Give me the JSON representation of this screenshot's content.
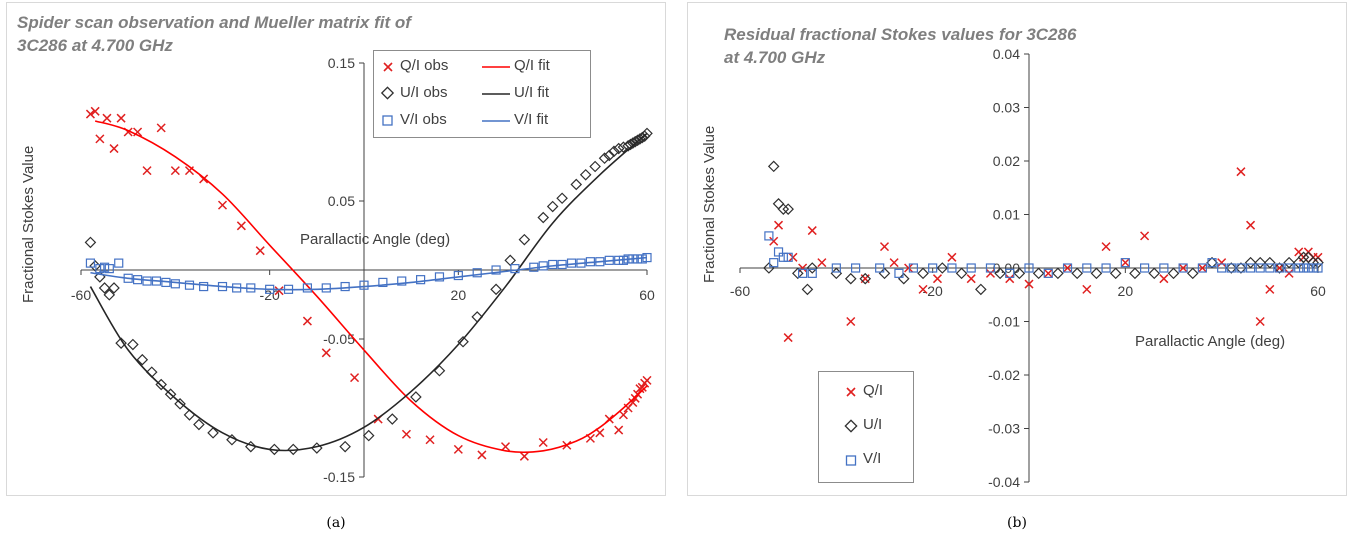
{
  "captions": [
    "(a)",
    "(b)"
  ],
  "colors": {
    "Q": "#e02020",
    "U": "#303030",
    "V": "#4472c4",
    "fitQ": "#ff0000",
    "fitU": "#262626",
    "fitV": "#4472c4"
  },
  "chart_data": [
    {
      "type": "scatter",
      "title_lines": [
        "Spider scan observation and Mueller matrix fit of",
        "3C286 at 4.700 GHz"
      ],
      "xlabel": "Parallactic Angle (deg)",
      "ylabel": "Fractional Stokes Value",
      "xlim": [
        -60,
        60
      ],
      "ylim": [
        -0.15,
        0.15
      ],
      "xticks": [
        "-60",
        "-20",
        "20",
        "60"
      ],
      "yticks": [
        "0.15",
        "0.05",
        "-0.05",
        "-0.15"
      ],
      "legend_labels": [
        "Q/I obs",
        "Q/I fit",
        "U/I obs",
        "U/I fit",
        "V/I obs",
        "V/I fit"
      ],
      "series": [
        {
          "name": "Q/I obs",
          "marker": "x",
          "x": [
            -58,
            -57,
            -56,
            -54.5,
            -53,
            -51.5,
            -50,
            -48,
            -46,
            -43,
            -40,
            -37,
            -34,
            -30,
            -26,
            -22,
            -18,
            -12,
            -8,
            -2,
            3,
            9,
            14,
            20,
            25,
            30,
            34,
            38,
            43,
            48,
            50,
            52,
            54,
            55,
            56,
            57,
            57.5,
            58,
            58.5,
            59,
            59.5,
            60
          ],
          "y": [
            0.113,
            0.115,
            0.095,
            0.11,
            0.088,
            0.11,
            0.1,
            0.1,
            0.072,
            0.103,
            0.072,
            0.072,
            0.066,
            0.047,
            0.032,
            0.014,
            -0.015,
            -0.037,
            -0.06,
            -0.078,
            -0.108,
            -0.119,
            -0.123,
            -0.13,
            -0.134,
            -0.128,
            -0.135,
            -0.125,
            -0.127,
            -0.122,
            -0.118,
            -0.108,
            -0.116,
            -0.105,
            -0.1,
            -0.096,
            -0.093,
            -0.09,
            -0.086,
            -0.085,
            -0.082,
            -0.08
          ]
        },
        {
          "name": "Q/I fit",
          "type": "line",
          "x": [
            -57,
            -50,
            -40,
            -30,
            -20,
            -10,
            0,
            10,
            20,
            30,
            38,
            45,
            50,
            55,
            60
          ],
          "y": [
            0.108,
            0.101,
            0.082,
            0.055,
            0.018,
            -0.019,
            -0.058,
            -0.095,
            -0.12,
            -0.131,
            -0.131,
            -0.124,
            -0.114,
            -0.1,
            -0.084
          ]
        },
        {
          "name": "U/I obs",
          "marker": "diamond",
          "x": [
            -58,
            -57,
            -56,
            -55,
            -54,
            -53,
            -51.5,
            -49,
            -47,
            -45,
            -43,
            -41,
            -39,
            -37,
            -35,
            -32,
            -28,
            -24,
            -19,
            -15,
            -10,
            -4,
            1,
            6,
            11,
            16,
            21,
            24,
            28,
            31,
            34,
            38,
            40,
            42,
            45,
            47,
            49,
            51,
            52,
            53,
            54,
            55,
            56,
            56.5,
            57,
            57.5,
            58,
            58.5,
            59,
            59.5,
            60
          ],
          "y": [
            0.02,
            0.003,
            -0.005,
            -0.013,
            -0.018,
            -0.013,
            -0.053,
            -0.054,
            -0.065,
            -0.074,
            -0.083,
            -0.09,
            -0.097,
            -0.105,
            -0.112,
            -0.118,
            -0.123,
            -0.128,
            -0.13,
            -0.13,
            -0.129,
            -0.128,
            -0.12,
            -0.108,
            -0.092,
            -0.073,
            -0.052,
            -0.034,
            -0.014,
            0.007,
            0.022,
            0.038,
            0.046,
            0.052,
            0.062,
            0.069,
            0.075,
            0.081,
            0.083,
            0.086,
            0.088,
            0.089,
            0.09,
            0.091,
            0.092,
            0.093,
            0.094,
            0.095,
            0.096,
            0.097,
            0.099
          ]
        },
        {
          "name": "U/I fit",
          "type": "line",
          "x": [
            -58,
            -50,
            -40,
            -30,
            -20,
            -10,
            0,
            10,
            20,
            30,
            40,
            50,
            60
          ],
          "y": [
            -0.012,
            -0.058,
            -0.093,
            -0.118,
            -0.13,
            -0.128,
            -0.114,
            -0.088,
            -0.054,
            -0.012,
            0.034,
            0.069,
            0.099
          ]
        },
        {
          "name": "V/I obs",
          "marker": "square",
          "x": [
            -58,
            -56,
            -55,
            -54,
            -52,
            -50,
            -48,
            -46,
            -44,
            -42,
            -40,
            -37,
            -34,
            -30,
            -27,
            -24,
            -20,
            -16,
            -12,
            -8,
            -4,
            0,
            4,
            8,
            12,
            16,
            20,
            24,
            28,
            32,
            36,
            38,
            40,
            42,
            44,
            46,
            48,
            50,
            52,
            54,
            55,
            56,
            57,
            58,
            59,
            60
          ],
          "y": [
            0.005,
            0.001,
            0.002,
            0.001,
            0.005,
            -0.006,
            -0.007,
            -0.008,
            -0.008,
            -0.009,
            -0.01,
            -0.011,
            -0.012,
            -0.012,
            -0.013,
            -0.013,
            -0.014,
            -0.014,
            -0.013,
            -0.013,
            -0.012,
            -0.011,
            -0.009,
            -0.008,
            -0.007,
            -0.005,
            -0.004,
            -0.002,
            0,
            0.001,
            0.002,
            0.003,
            0.004,
            0.004,
            0.005,
            0.005,
            0.006,
            0.006,
            0.007,
            0.007,
            0.007,
            0.008,
            0.008,
            0.008,
            0.008,
            0.009
          ]
        },
        {
          "name": "V/I fit",
          "type": "line",
          "x": [
            -58,
            -50,
            -40,
            -30,
            -20,
            -10,
            0,
            10,
            20,
            30,
            40,
            50,
            60
          ],
          "y": [
            -0.002,
            -0.006,
            -0.009,
            -0.012,
            -0.014,
            -0.014,
            -0.012,
            -0.009,
            -0.005,
            -0.001,
            0.003,
            0.006,
            0.009
          ]
        }
      ]
    },
    {
      "type": "scatter",
      "title_lines": [
        "Residual fractional Stokes values for 3C286",
        "at 4.700 GHz"
      ],
      "xlabel": "Parallactic Angle (deg)",
      "ylabel": "Fractional Stokes Value",
      "xlim": [
        -60,
        60
      ],
      "ylim": [
        -0.04,
        0.04
      ],
      "xticks": [
        "-60",
        "-20",
        "20",
        "60"
      ],
      "yticks": [
        "0.04",
        "0.03",
        "0.02",
        "0.01",
        "0.00",
        "-0.01",
        "-0.02",
        "-0.03",
        "-0.04"
      ],
      "legend_labels": [
        "Q/I",
        "U/I",
        "V/I"
      ],
      "series": [
        {
          "name": "Q/I",
          "marker": "x",
          "x": [
            -53,
            -52,
            -50,
            -49,
            -47,
            -45,
            -43,
            -37,
            -34,
            -30,
            -28,
            -25,
            -22,
            -19,
            -16,
            -12,
            -8,
            -4,
            0,
            4,
            8,
            12,
            16,
            20,
            24,
            28,
            32,
            36,
            40,
            44,
            46,
            48,
            50,
            52,
            54,
            56,
            57,
            58,
            59,
            60
          ],
          "y": [
            0.005,
            0.008,
            -0.013,
            0.002,
            0.0,
            0.007,
            0.001,
            -0.01,
            -0.002,
            0.004,
            0.001,
            0.0,
            -0.004,
            -0.002,
            0.002,
            -0.002,
            -0.001,
            -0.002,
            -0.003,
            -0.001,
            0.0,
            -0.004,
            0.004,
            0.001,
            0.006,
            -0.002,
            0.0,
            0.0,
            0.001,
            0.018,
            0.008,
            -0.01,
            -0.004,
            0.0,
            -0.001,
            0.003,
            0.002,
            0.003,
            0.002,
            0.002
          ]
        },
        {
          "name": "U/I",
          "marker": "diamond",
          "x": [
            -54,
            -53,
            -52,
            -51,
            -50,
            -48,
            -46,
            -45,
            -40,
            -37,
            -34,
            -30,
            -26,
            -22,
            -18,
            -14,
            -10,
            -6,
            -2,
            2,
            6,
            10,
            14,
            18,
            22,
            26,
            30,
            34,
            38,
            42,
            44,
            46,
            48,
            50,
            52,
            54,
            56,
            57,
            58,
            59,
            60
          ],
          "y": [
            0.0,
            0.019,
            0.012,
            0.011,
            0.011,
            -0.001,
            -0.004,
            0.0,
            -0.001,
            -0.002,
            -0.002,
            -0.001,
            -0.002,
            -0.001,
            0.0,
            -0.001,
            -0.004,
            -0.001,
            -0.001,
            -0.001,
            -0.001,
            -0.001,
            -0.001,
            -0.001,
            -0.001,
            -0.001,
            -0.001,
            -0.001,
            0.001,
            0.0,
            0.0,
            0.001,
            0.001,
            0.001,
            0.0,
            0.001,
            0.001,
            0.002,
            0.002,
            0.001,
            0.001
          ]
        },
        {
          "name": "V/I",
          "marker": "square",
          "x": [
            -54,
            -53,
            -52,
            -51,
            -50,
            -47,
            -45,
            -40,
            -36,
            -31,
            -27,
            -24,
            -20,
            -16,
            -12,
            -8,
            -4,
            0,
            4,
            8,
            12,
            16,
            20,
            24,
            28,
            32,
            36,
            38,
            40,
            42,
            44,
            46,
            48,
            50,
            52,
            54,
            56,
            57,
            58,
            59,
            60
          ],
          "y": [
            0.006,
            0.001,
            0.003,
            0.002,
            0.002,
            -0.001,
            -0.001,
            0.0,
            0.0,
            0.0,
            -0.001,
            0.0,
            0.0,
            0.0,
            0.0,
            0.0,
            -0.001,
            0.0,
            -0.001,
            0.0,
            0.0,
            0.0,
            0.001,
            0.0,
            0.0,
            0.0,
            0.0,
            0.001,
            0.0,
            0.0,
            0.0,
            0.0,
            0.0,
            0.0,
            0.0,
            0.0,
            0.0,
            0.0,
            0.0,
            0.0,
            0.0
          ]
        }
      ]
    }
  ]
}
